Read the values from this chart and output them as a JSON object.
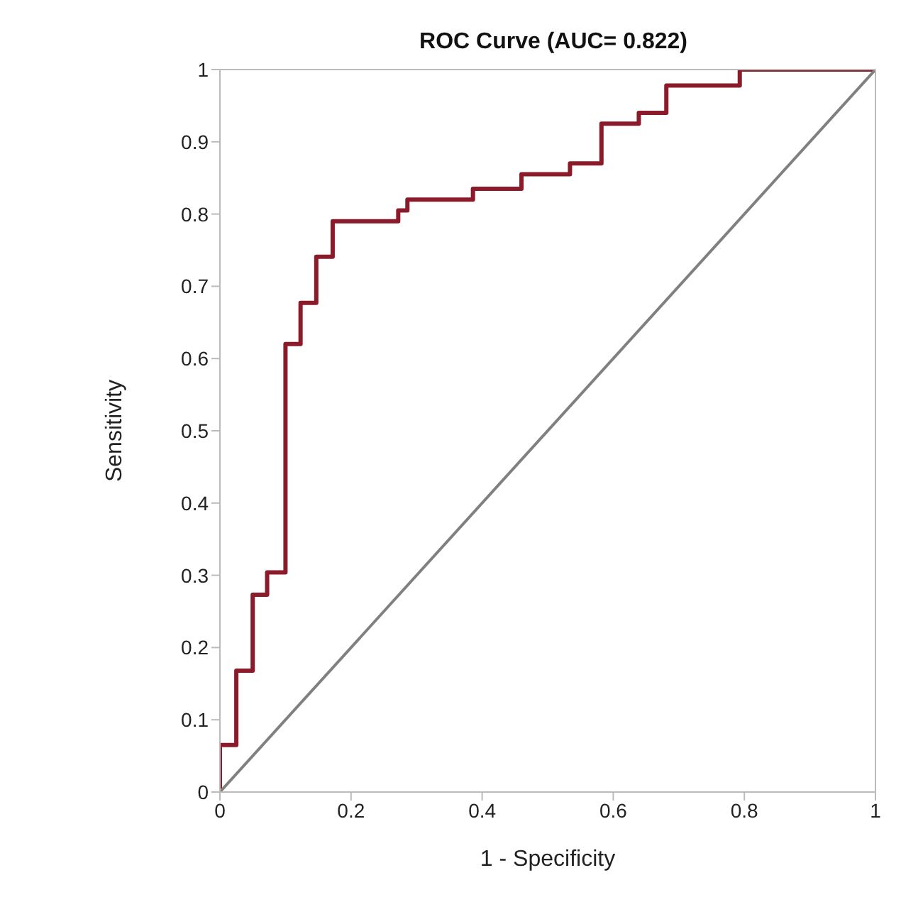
{
  "chart_data": {
    "type": "step",
    "title": "ROC Curve (AUC= 0.822)",
    "xlabel": "1 - Specificity",
    "ylabel": "Sensitivity",
    "series": [
      {
        "type": "step",
        "color": "#8b1a2b",
        "x": [
          0,
          0,
          0.025,
          0.05,
          0.072,
          0.1,
          0.123,
          0.147,
          0.172,
          0.272,
          0.286,
          0.386,
          0.46,
          0.534,
          0.582,
          0.639,
          0.681,
          0.793,
          1
        ],
        "values": [
          0,
          0.065,
          0.168,
          0.273,
          0.304,
          0.62,
          0.677,
          0.741,
          0.79,
          0.805,
          0.82,
          0.835,
          0.855,
          0.87,
          0.925,
          0.94,
          0.978,
          1,
          1
        ]
      },
      {
        "type": "line",
        "color": "#808080",
        "x": [
          0,
          1
        ],
        "values": [
          0,
          1
        ]
      }
    ],
    "xlim": [
      0,
      1
    ],
    "ylim": [
      0,
      1
    ],
    "xticks": [
      0,
      0.2,
      0.4,
      0.6,
      0.8,
      1
    ],
    "yticks": [
      0,
      0.1,
      0.2,
      0.3,
      0.4,
      0.5,
      0.6,
      0.7,
      0.8,
      0.9,
      1
    ]
  }
}
